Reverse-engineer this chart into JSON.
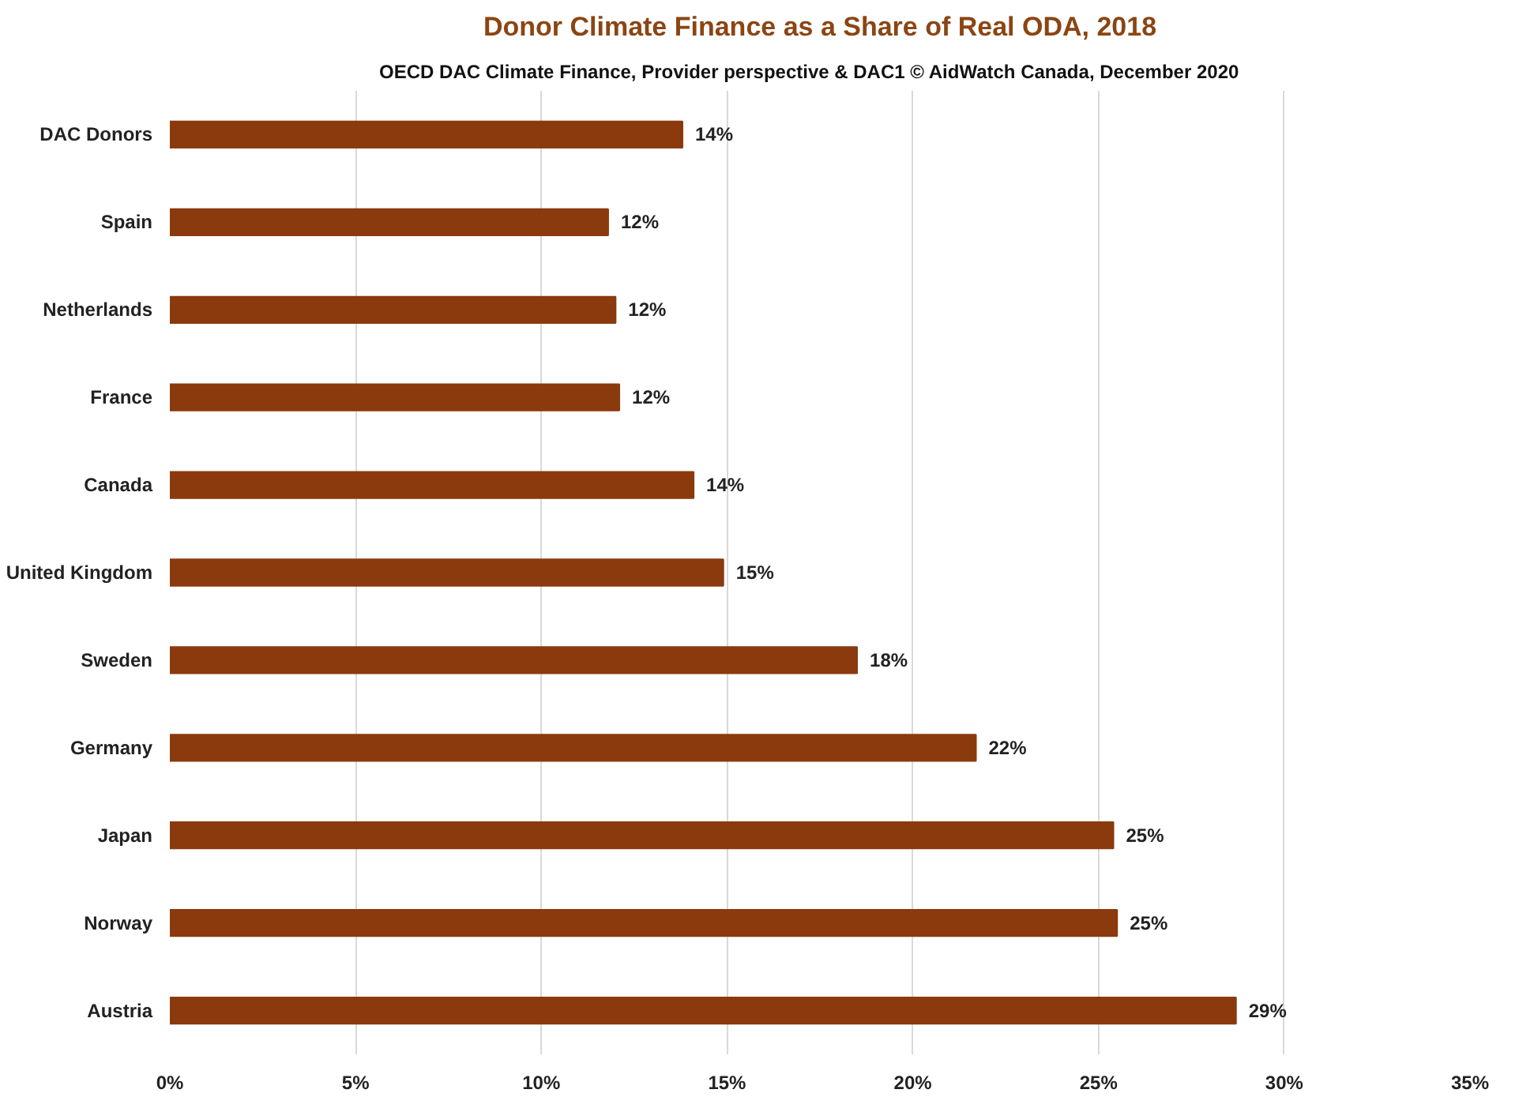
{
  "chart_data": {
    "type": "bar",
    "orientation": "horizontal",
    "title": "Donor Climate Finance as a Share of Real ODA, 2018",
    "subtitle": "OECD DAC Climate Finance, Provider perspective & DAC1     © AidWatch Canada, December 2020",
    "categories": [
      "DAC Donors",
      "Spain",
      "Netherlands",
      "France",
      "Canada",
      "United Kingdom",
      "Sweden",
      "Germany",
      "Japan",
      "Norway",
      "Austria"
    ],
    "values": [
      13.8,
      11.8,
      12.0,
      12.1,
      14.1,
      14.9,
      18.5,
      21.7,
      25.4,
      25.5,
      28.7
    ],
    "value_labels": [
      "14%",
      "12%",
      "12%",
      "12%",
      "14%",
      "15%",
      "18%",
      "22%",
      "25%",
      "25%",
      "29%"
    ],
    "color": "#8b3a0e",
    "xlim": [
      0,
      35
    ],
    "xticks": [
      {
        "value": 0,
        "label": "0%"
      },
      {
        "value": 5,
        "label": "5%"
      },
      {
        "value": 10,
        "label": "10%"
      },
      {
        "value": 15,
        "label": "15%"
      },
      {
        "value": 20,
        "label": "20%"
      },
      {
        "value": 25,
        "label": "25%"
      },
      {
        "value": 30,
        "label": "30%"
      },
      {
        "value": 35,
        "label": "35%"
      }
    ],
    "grid": "x"
  }
}
